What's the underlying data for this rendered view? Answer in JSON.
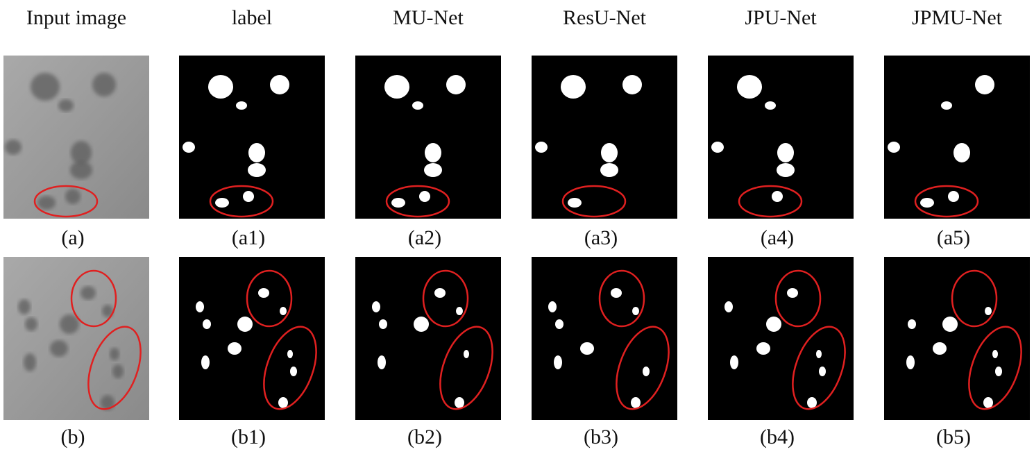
{
  "header": {
    "columns": [
      "Input image",
      "label",
      "MU-Net",
      "ResU-Net",
      "JPU-Net",
      "JPMU-Net"
    ]
  },
  "panels": {
    "rows": [
      [
        "(a)",
        "(a1)",
        "(a2)",
        "(a3)",
        "(a4)",
        "(a5)"
      ],
      [
        "(b)",
        "(b1)",
        "(b2)",
        "(b3)",
        "(b4)",
        "(b5)"
      ]
    ]
  }
}
